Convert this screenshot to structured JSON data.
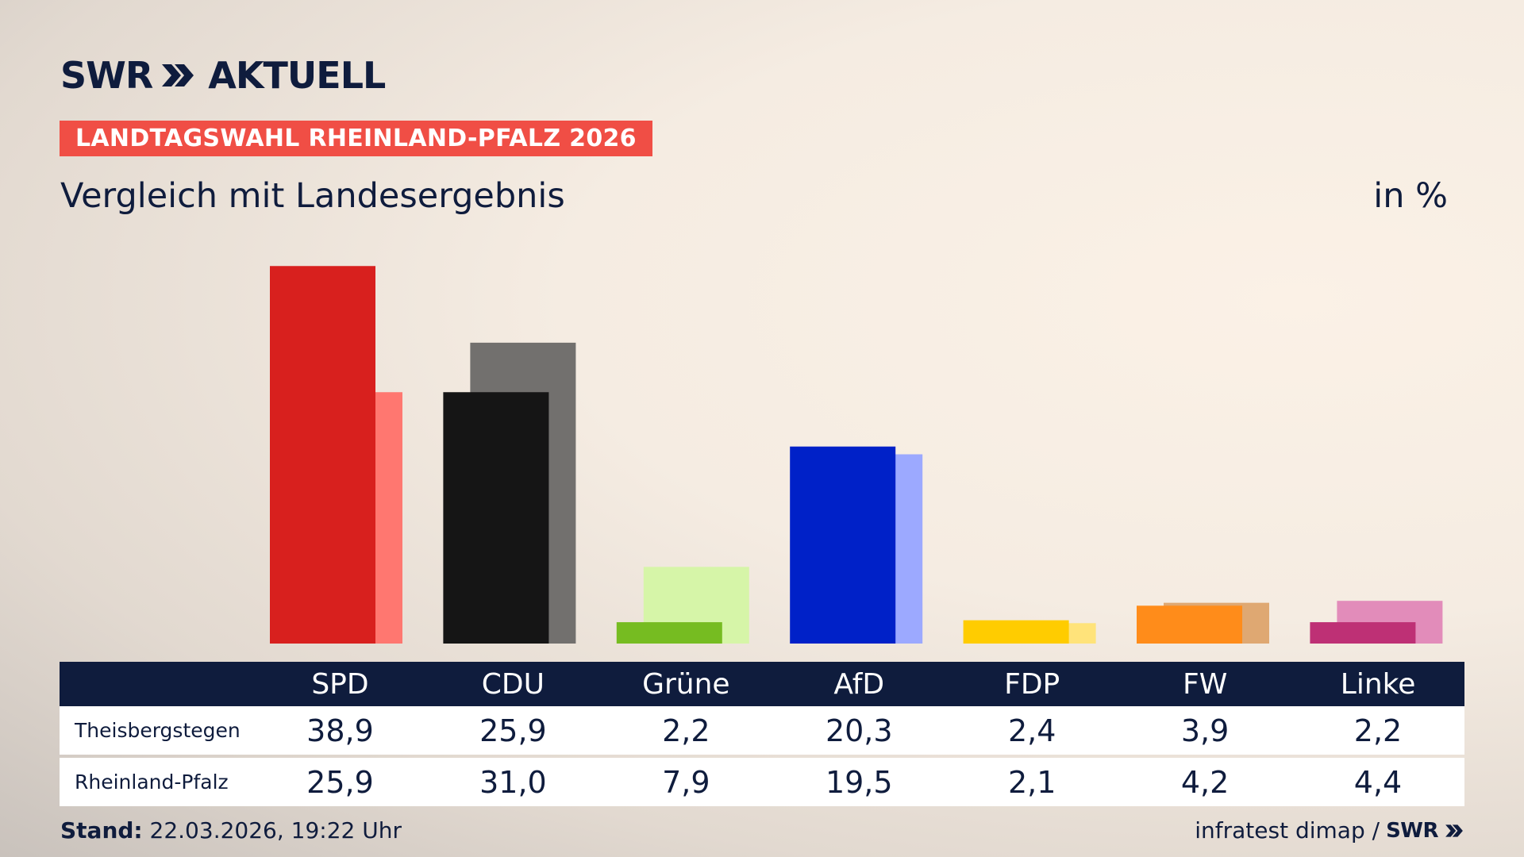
{
  "header": {
    "logo_text": "SWR",
    "logo_title": "AKTUELL",
    "badge": "LANDTAGSWAHL RHEINLAND-PFALZ 2026",
    "subtitle": "Vergleich mit Landesergebnis",
    "unit": "in %"
  },
  "footer": {
    "stand_label": "Stand:",
    "stand_value": "22.03.2026, 19:22 Uhr",
    "source": "infratest dimap /",
    "source_logo": "SWR"
  },
  "colors": {
    "navy": "#0f1c3d",
    "badge": "#f04e45"
  },
  "chart_data": {
    "type": "bar",
    "categories": [
      "SPD",
      "CDU",
      "Grüne",
      "AfD",
      "FDP",
      "FW",
      "Linke"
    ],
    "series": [
      {
        "name": "Theisbergstegen",
        "values": [
          38.9,
          25.9,
          2.2,
          20.3,
          2.4,
          3.9,
          2.2
        ],
        "colors": [
          "#d8201e",
          "#151515",
          "#76bc21",
          "#0021c8",
          "#ffcc00",
          "#ff8c1a",
          "#be3075"
        ]
      },
      {
        "name": "Rheinland-Pfalz",
        "values": [
          25.9,
          31.0,
          7.9,
          19.5,
          2.1,
          4.2,
          4.4
        ],
        "colors": [
          "#ff7770",
          "#72706e",
          "#d6f5a8",
          "#9ca9ff",
          "#ffe37a",
          "#dfa872",
          "#e28cba"
        ]
      }
    ],
    "table": {
      "headers": [
        "SPD",
        "CDU",
        "Grüne",
        "AfD",
        "FDP",
        "FW",
        "Linke"
      ],
      "rows": [
        {
          "label": "Theisbergstegen",
          "values": [
            "38,9",
            "25,9",
            "2,2",
            "20,3",
            "2,4",
            "3,9",
            "2,2"
          ]
        },
        {
          "label": "Rheinland-Pfalz",
          "values": [
            "25,9",
            "31,0",
            "7,9",
            "19,5",
            "2,1",
            "4,2",
            "4,4"
          ]
        }
      ]
    }
  }
}
